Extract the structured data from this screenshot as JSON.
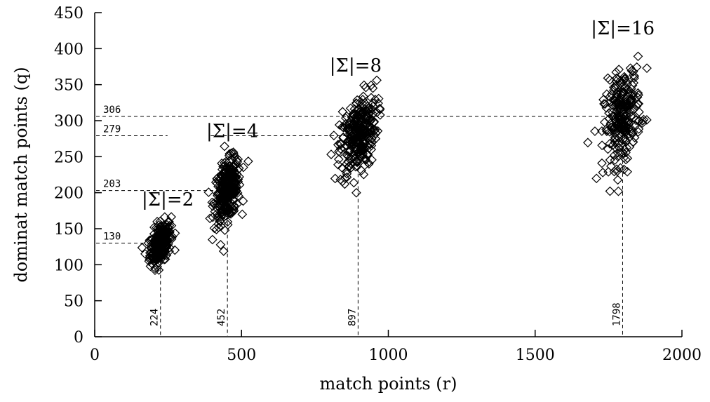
{
  "chart_data": {
    "type": "scatter",
    "title": "",
    "xlabel": "match points (r)",
    "ylabel": "dominat match points (q)",
    "xlim": [
      0,
      2000
    ],
    "ylim": [
      0,
      450
    ],
    "x_ticks": [
      0,
      500,
      1000,
      1500,
      2000
    ],
    "y_ticks": [
      0,
      50,
      100,
      150,
      200,
      250,
      300,
      350,
      400,
      450
    ],
    "marker": "diamond",
    "groups": [
      {
        "label": "|Σ|=2",
        "center_r": 224,
        "center_q": 130,
        "r_spread": 20,
        "q_spread": 15,
        "count": 260
      },
      {
        "label": "|Σ|=4",
        "center_r": 452,
        "center_q": 203,
        "r_spread": 25,
        "q_spread": 22,
        "count": 300
      },
      {
        "label": "|Σ|=8",
        "center_r": 897,
        "center_q": 279,
        "r_spread": 35,
        "q_spread": 30,
        "count": 300
      },
      {
        "label": "|Σ|=16",
        "center_r": 1798,
        "center_q": 306,
        "r_spread": 35,
        "q_spread": 35,
        "count": 260
      }
    ],
    "reference_lines": {
      "horizontal": [
        {
          "label": "130",
          "q": 130,
          "r_end": 224
        },
        {
          "label": "203",
          "q": 203,
          "r_end": 452
        },
        {
          "label": "279",
          "q": 279,
          "r_end": 897
        },
        {
          "label": "306",
          "q": 306,
          "r_end": 1798
        }
      ],
      "vertical": [
        {
          "label": "224",
          "r": 224,
          "q_end": 130
        },
        {
          "label": "452",
          "r": 452,
          "q_end": 203
        },
        {
          "label": "897",
          "r": 897,
          "q_end": 279
        },
        {
          "label": "1798",
          "r": 1798,
          "q_end": 306
        }
      ]
    },
    "grid": false,
    "legend": "none"
  }
}
